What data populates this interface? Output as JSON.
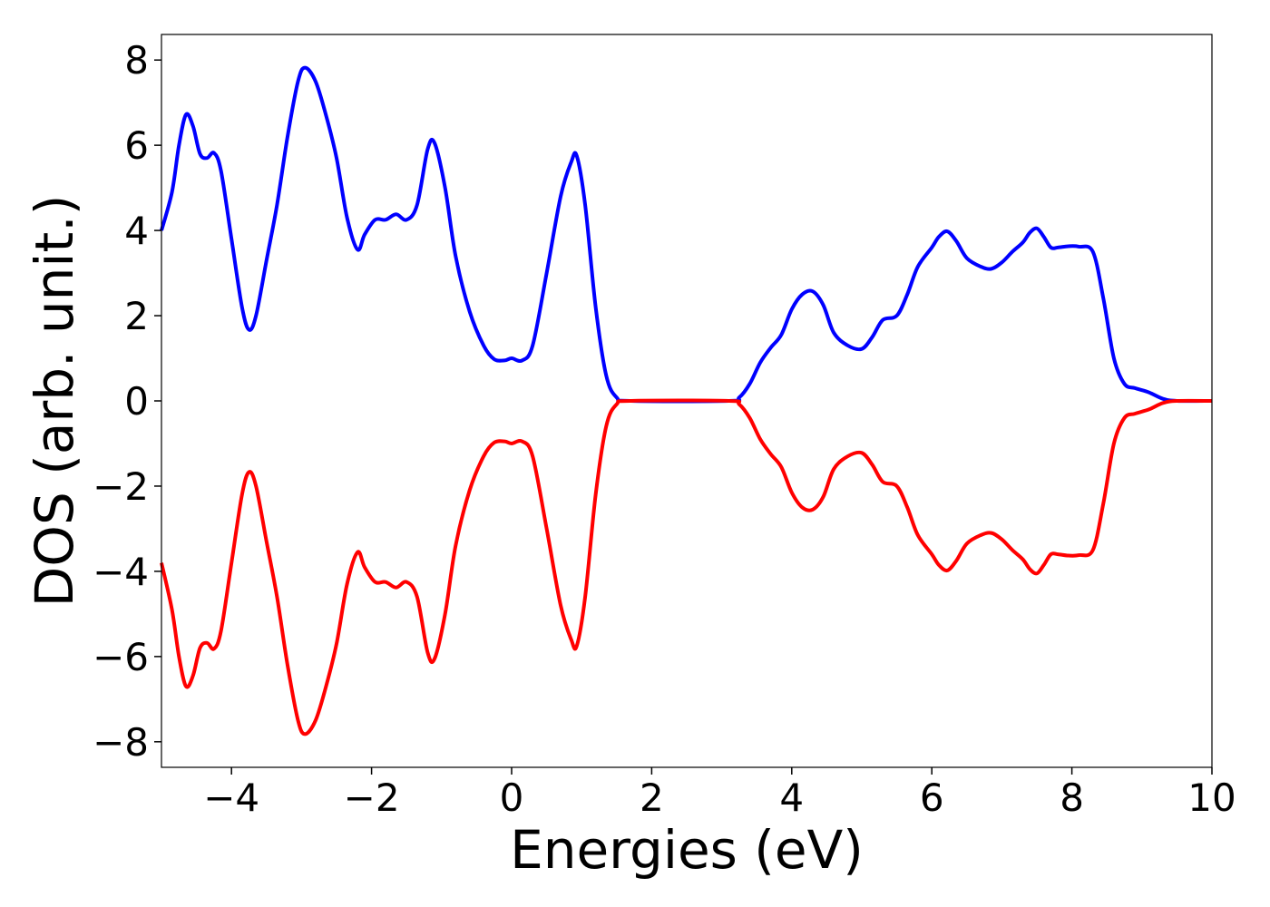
{
  "chart_data": {
    "type": "line",
    "title": "",
    "xlabel": "Energies (eV)",
    "ylabel": "DOS (arb. unit.)",
    "xlim": [
      -5,
      10
    ],
    "ylim": [
      -8.6,
      8.6
    ],
    "xticks": [
      -4,
      -2,
      0,
      2,
      4,
      6,
      8,
      10
    ],
    "xtick_labels": [
      "−4",
      "−2",
      "0",
      "2",
      "4",
      "6",
      "8",
      "10"
    ],
    "yticks": [
      8,
      6,
      4,
      2,
      0,
      -2,
      -4,
      -6,
      -8
    ],
    "ytick_labels": [
      "8",
      "6",
      "4",
      "2",
      "0",
      "−2",
      "−4",
      "−6",
      "−8"
    ],
    "grid": false,
    "legend": "none",
    "series": [
      {
        "color": "#0000ff",
        "points": [
          [
            -5.0,
            4.0
          ],
          [
            -4.85,
            4.9
          ],
          [
            -4.75,
            6.0
          ],
          [
            -4.65,
            6.72
          ],
          [
            -4.55,
            6.45
          ],
          [
            -4.45,
            5.8
          ],
          [
            -4.35,
            5.7
          ],
          [
            -4.25,
            5.82
          ],
          [
            -4.15,
            5.4
          ],
          [
            -4.0,
            3.8
          ],
          [
            -3.85,
            2.2
          ],
          [
            -3.75,
            1.67
          ],
          [
            -3.65,
            2.0
          ],
          [
            -3.5,
            3.3
          ],
          [
            -3.35,
            4.6
          ],
          [
            -3.2,
            6.2
          ],
          [
            -3.05,
            7.5
          ],
          [
            -2.95,
            7.82
          ],
          [
            -2.8,
            7.5
          ],
          [
            -2.65,
            6.7
          ],
          [
            -2.5,
            5.7
          ],
          [
            -2.35,
            4.3
          ],
          [
            -2.2,
            3.55
          ],
          [
            -2.1,
            3.9
          ],
          [
            -1.95,
            4.25
          ],
          [
            -1.8,
            4.25
          ],
          [
            -1.65,
            4.38
          ],
          [
            -1.5,
            4.25
          ],
          [
            -1.35,
            4.6
          ],
          [
            -1.2,
            5.9
          ],
          [
            -1.1,
            6.05
          ],
          [
            -0.95,
            5.0
          ],
          [
            -0.8,
            3.4
          ],
          [
            -0.6,
            2.1
          ],
          [
            -0.4,
            1.3
          ],
          [
            -0.25,
            0.98
          ],
          [
            -0.1,
            0.95
          ],
          [
            0.0,
            1.0
          ],
          [
            0.15,
            0.95
          ],
          [
            0.3,
            1.3
          ],
          [
            0.5,
            3.0
          ],
          [
            0.7,
            4.8
          ],
          [
            0.85,
            5.6
          ],
          [
            0.93,
            5.75
          ],
          [
            1.05,
            4.6
          ],
          [
            1.2,
            2.2
          ],
          [
            1.35,
            0.6
          ],
          [
            1.5,
            0.08
          ],
          [
            1.7,
            0.0
          ],
          [
            3.1,
            0.0
          ],
          [
            3.25,
            0.08
          ],
          [
            3.4,
            0.4
          ],
          [
            3.55,
            0.9
          ],
          [
            3.7,
            1.25
          ],
          [
            3.85,
            1.55
          ],
          [
            4.0,
            2.15
          ],
          [
            4.15,
            2.5
          ],
          [
            4.3,
            2.57
          ],
          [
            4.45,
            2.25
          ],
          [
            4.6,
            1.6
          ],
          [
            4.8,
            1.3
          ],
          [
            5.0,
            1.22
          ],
          [
            5.15,
            1.5
          ],
          [
            5.3,
            1.9
          ],
          [
            5.5,
            2.0
          ],
          [
            5.65,
            2.5
          ],
          [
            5.8,
            3.15
          ],
          [
            6.0,
            3.6
          ],
          [
            6.1,
            3.85
          ],
          [
            6.22,
            3.98
          ],
          [
            6.35,
            3.75
          ],
          [
            6.5,
            3.35
          ],
          [
            6.7,
            3.15
          ],
          [
            6.85,
            3.1
          ],
          [
            7.0,
            3.25
          ],
          [
            7.15,
            3.5
          ],
          [
            7.3,
            3.72
          ],
          [
            7.4,
            3.95
          ],
          [
            7.5,
            4.05
          ],
          [
            7.6,
            3.85
          ],
          [
            7.7,
            3.6
          ],
          [
            7.8,
            3.6
          ],
          [
            7.95,
            3.63
          ],
          [
            8.1,
            3.62
          ],
          [
            8.3,
            3.5
          ],
          [
            8.45,
            2.4
          ],
          [
            8.6,
            1.0
          ],
          [
            8.75,
            0.4
          ],
          [
            8.9,
            0.3
          ],
          [
            9.1,
            0.2
          ],
          [
            9.3,
            0.05
          ],
          [
            9.5,
            0.0
          ],
          [
            10.0,
            0.0
          ]
        ]
      },
      {
        "color": "#ff0000",
        "points": [
          [
            -5.0,
            -3.8
          ],
          [
            -4.85,
            -4.9
          ],
          [
            -4.75,
            -6.0
          ],
          [
            -4.65,
            -6.7
          ],
          [
            -4.55,
            -6.45
          ],
          [
            -4.45,
            -5.8
          ],
          [
            -4.35,
            -5.68
          ],
          [
            -4.25,
            -5.82
          ],
          [
            -4.15,
            -5.4
          ],
          [
            -4.0,
            -3.8
          ],
          [
            -3.85,
            -2.2
          ],
          [
            -3.75,
            -1.67
          ],
          [
            -3.65,
            -2.0
          ],
          [
            -3.5,
            -3.3
          ],
          [
            -3.35,
            -4.6
          ],
          [
            -3.2,
            -6.2
          ],
          [
            -3.05,
            -7.5
          ],
          [
            -2.95,
            -7.82
          ],
          [
            -2.8,
            -7.5
          ],
          [
            -2.65,
            -6.7
          ],
          [
            -2.5,
            -5.7
          ],
          [
            -2.35,
            -4.3
          ],
          [
            -2.2,
            -3.55
          ],
          [
            -2.1,
            -3.9
          ],
          [
            -1.95,
            -4.25
          ],
          [
            -1.8,
            -4.25
          ],
          [
            -1.65,
            -4.38
          ],
          [
            -1.5,
            -4.25
          ],
          [
            -1.35,
            -4.6
          ],
          [
            -1.2,
            -5.9
          ],
          [
            -1.1,
            -6.05
          ],
          [
            -0.95,
            -5.0
          ],
          [
            -0.8,
            -3.4
          ],
          [
            -0.6,
            -2.1
          ],
          [
            -0.4,
            -1.3
          ],
          [
            -0.25,
            -0.98
          ],
          [
            -0.1,
            -0.95
          ],
          [
            0.0,
            -1.0
          ],
          [
            0.15,
            -0.95
          ],
          [
            0.3,
            -1.3
          ],
          [
            0.5,
            -3.0
          ],
          [
            0.7,
            -4.8
          ],
          [
            0.85,
            -5.6
          ],
          [
            0.93,
            -5.75
          ],
          [
            1.05,
            -4.6
          ],
          [
            1.2,
            -2.2
          ],
          [
            1.35,
            -0.6
          ],
          [
            1.5,
            -0.08
          ],
          [
            1.7,
            0.0
          ],
          [
            3.1,
            0.0
          ],
          [
            3.25,
            -0.08
          ],
          [
            3.4,
            -0.4
          ],
          [
            3.55,
            -0.9
          ],
          [
            3.7,
            -1.25
          ],
          [
            3.85,
            -1.55
          ],
          [
            4.0,
            -2.15
          ],
          [
            4.15,
            -2.5
          ],
          [
            4.3,
            -2.55
          ],
          [
            4.45,
            -2.25
          ],
          [
            4.6,
            -1.6
          ],
          [
            4.8,
            -1.3
          ],
          [
            5.0,
            -1.22
          ],
          [
            5.15,
            -1.5
          ],
          [
            5.3,
            -1.9
          ],
          [
            5.5,
            -2.0
          ],
          [
            5.65,
            -2.5
          ],
          [
            5.8,
            -3.15
          ],
          [
            6.0,
            -3.6
          ],
          [
            6.1,
            -3.85
          ],
          [
            6.22,
            -3.98
          ],
          [
            6.35,
            -3.75
          ],
          [
            6.5,
            -3.35
          ],
          [
            6.7,
            -3.15
          ],
          [
            6.85,
            -3.1
          ],
          [
            7.0,
            -3.25
          ],
          [
            7.15,
            -3.5
          ],
          [
            7.3,
            -3.72
          ],
          [
            7.4,
            -3.95
          ],
          [
            7.5,
            -4.05
          ],
          [
            7.6,
            -3.85
          ],
          [
            7.7,
            -3.6
          ],
          [
            7.8,
            -3.6
          ],
          [
            7.95,
            -3.63
          ],
          [
            8.1,
            -3.62
          ],
          [
            8.3,
            -3.5
          ],
          [
            8.45,
            -2.4
          ],
          [
            8.6,
            -1.0
          ],
          [
            8.75,
            -0.4
          ],
          [
            8.9,
            -0.3
          ],
          [
            9.1,
            -0.2
          ],
          [
            9.3,
            -0.05
          ],
          [
            9.5,
            0.0
          ],
          [
            10.0,
            0.0
          ]
        ]
      }
    ]
  }
}
